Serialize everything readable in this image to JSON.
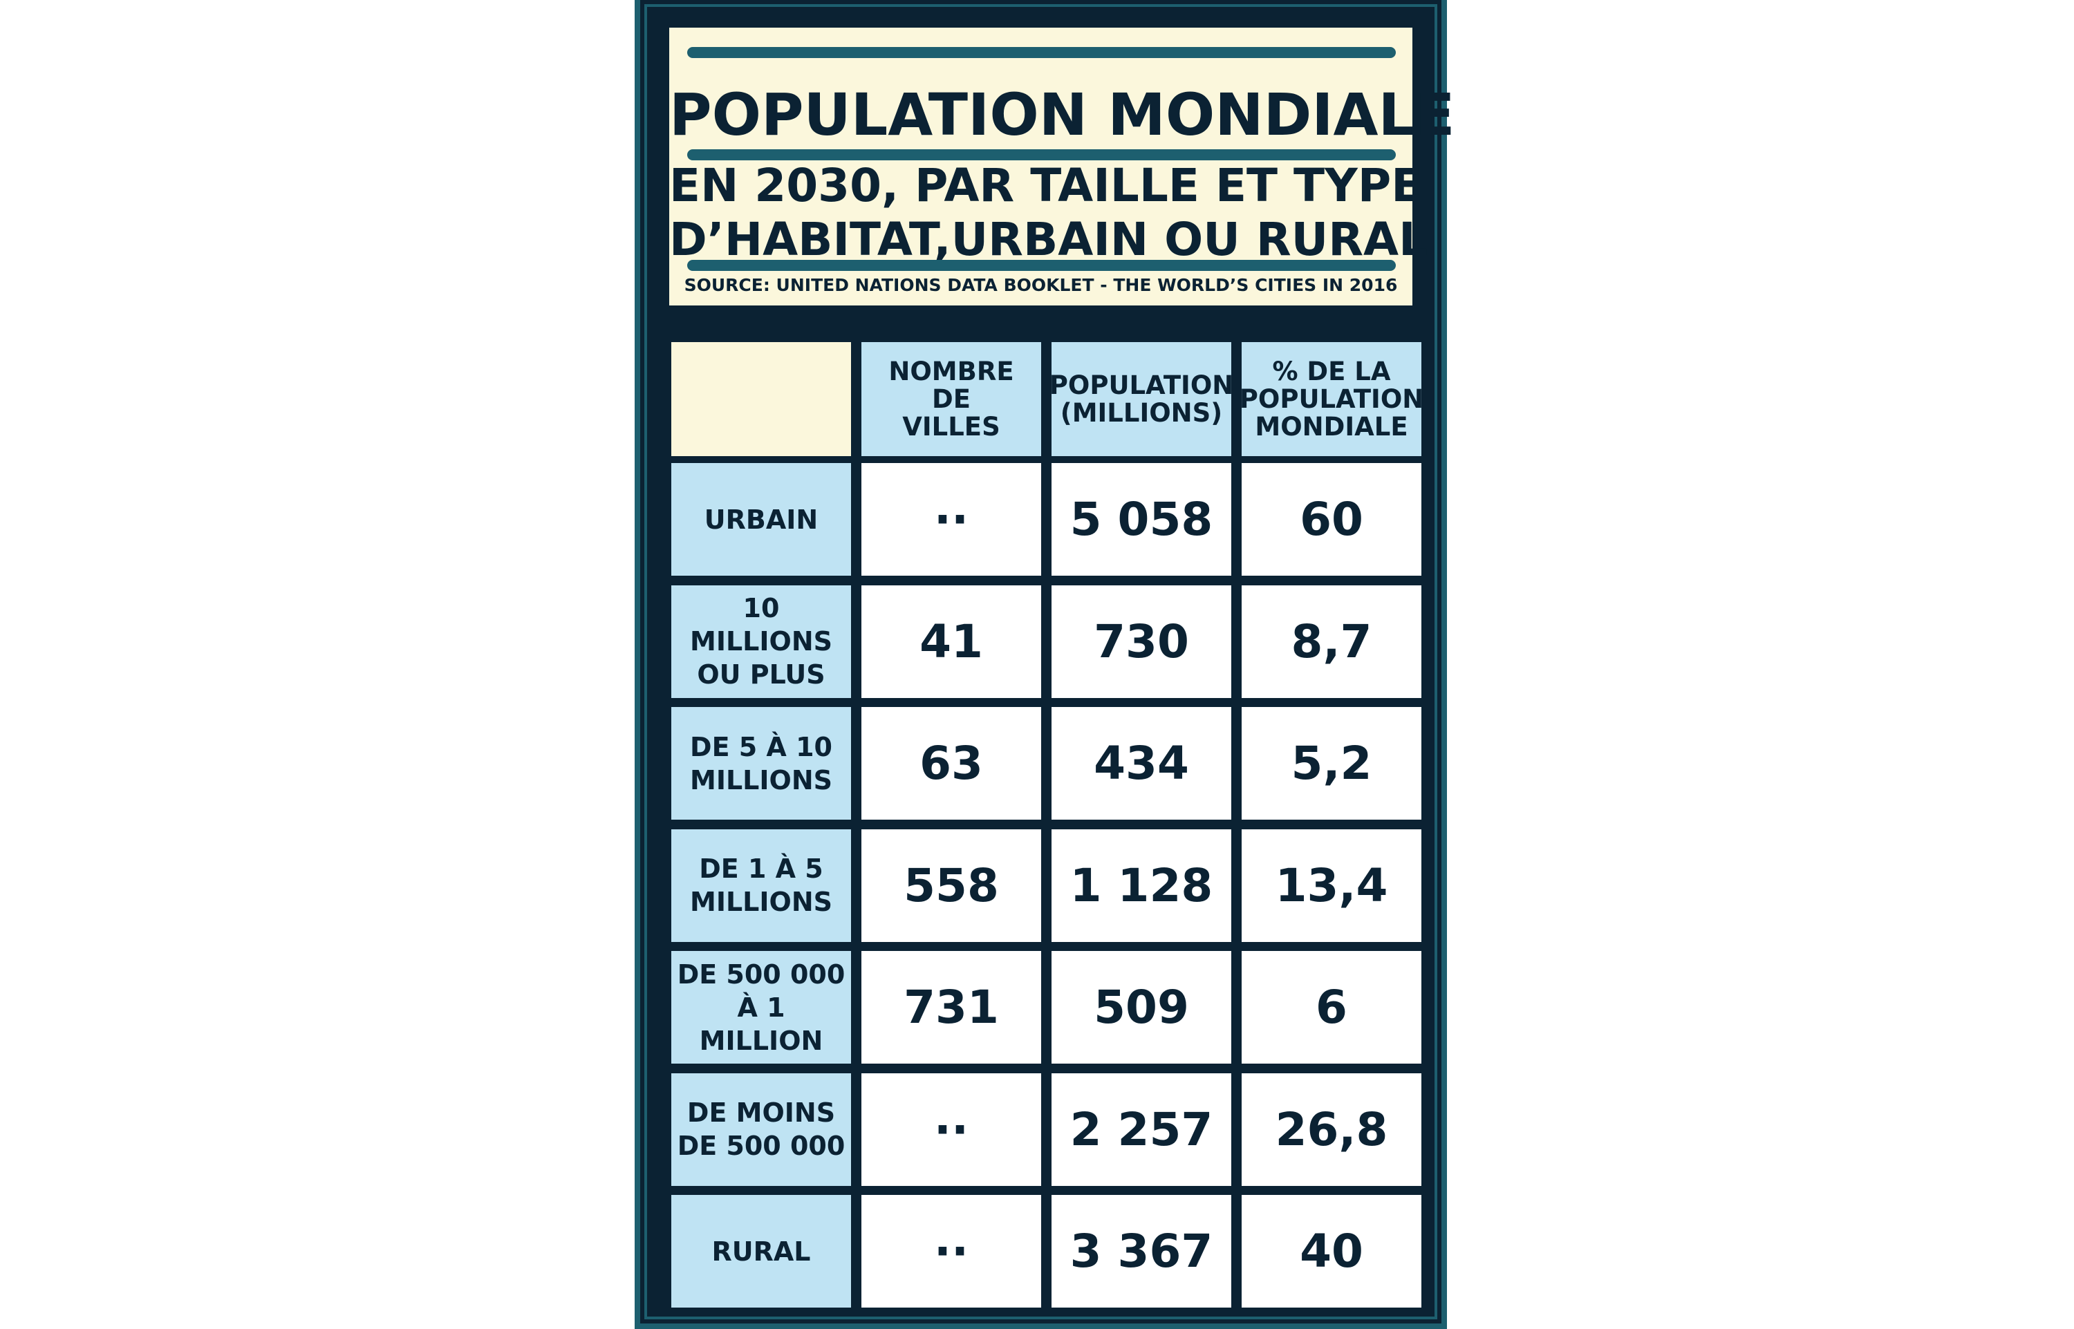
{
  "title": "POPULATION MONDIALE",
  "subtitle_lines": [
    "EN 2030, PAR TAILLE ET TYPE",
    "D’HABITAT,URBAIN OU RURAL"
  ],
  "source": "SOURCE: UNITED NATIONS DATA BOOKLET - THE WORLD’S CITIES IN 2016",
  "colors": {
    "frame": "#0b2233",
    "accent_rule": "#1d5f6f",
    "title_panel": "#fbf7dc",
    "header_cells": "#bfe3f3",
    "value_cells": "#ffffff"
  },
  "chart_data": {
    "type": "table",
    "columns": [
      [
        "NOMBRE",
        "DE",
        "VILLES"
      ],
      [
        "POPULATION",
        "(MILLIONS)"
      ],
      [
        "% DE LA",
        "POPULATION",
        "MONDIALE"
      ]
    ],
    "rows": [
      {
        "label": [
          "URBAIN"
        ],
        "values": [
          "··",
          "5 058",
          "60"
        ]
      },
      {
        "label": [
          "10 MILLIONS",
          "OU PLUS"
        ],
        "values": [
          "41",
          "730",
          "8,7"
        ]
      },
      {
        "label": [
          "DE 5 À 10",
          "MILLIONS"
        ],
        "values": [
          "63",
          "434",
          "5,2"
        ]
      },
      {
        "label": [
          "DE 1 À 5",
          "MILLIONS"
        ],
        "values": [
          "558",
          "1 128",
          "13,4"
        ]
      },
      {
        "label": [
          "DE 500 000",
          "À 1 MILLION"
        ],
        "values": [
          "731",
          "509",
          "6"
        ]
      },
      {
        "label": [
          "DE MOINS",
          "DE 500 000"
        ],
        "values": [
          "··",
          "2 257",
          "26,8"
        ]
      },
      {
        "label": [
          "RURAL"
        ],
        "values": [
          "··",
          "3 367",
          "40"
        ]
      }
    ]
  }
}
